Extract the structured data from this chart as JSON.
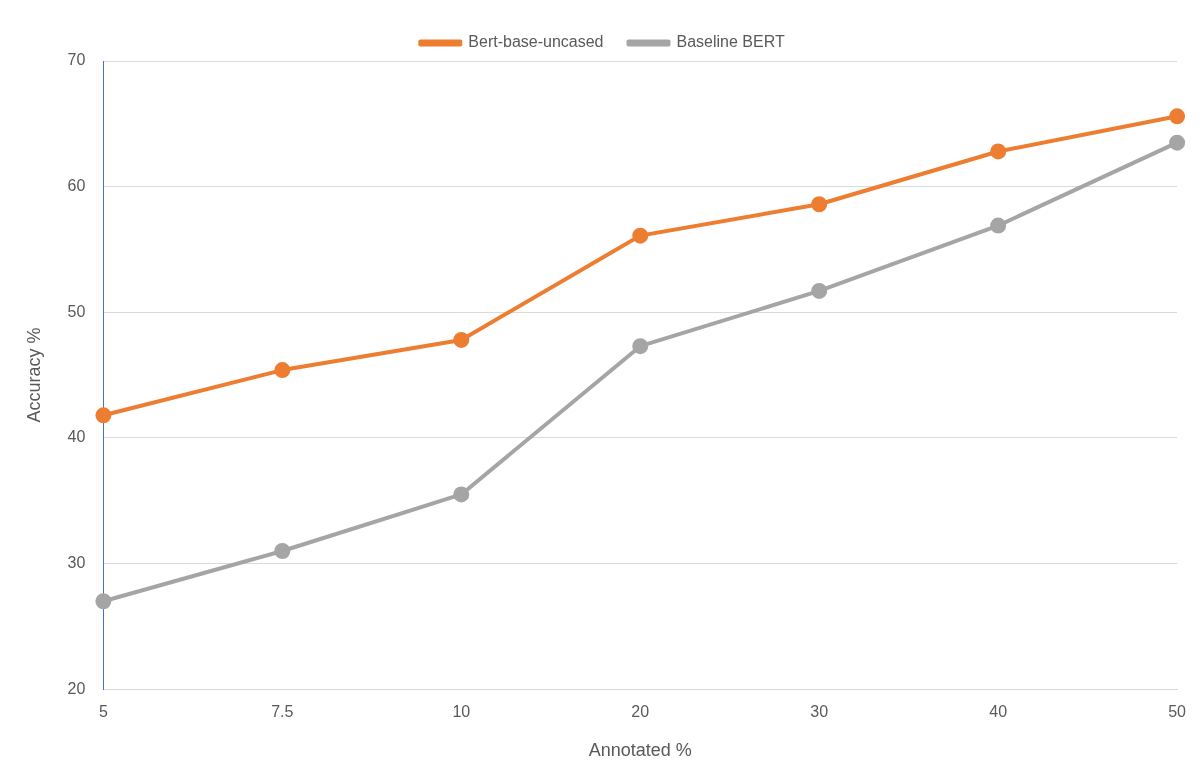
{
  "chart_data": {
    "type": "line",
    "xlabel": "Annotated %",
    "ylabel": "Accuracy %",
    "categories": [
      "5",
      "7.5",
      "10",
      "20",
      "30",
      "40",
      "50"
    ],
    "series": [
      {
        "name": "Bert-base-uncased",
        "color": "#ed7d31",
        "values": [
          41.8,
          45.4,
          47.8,
          56.1,
          58.6,
          62.8,
          65.6
        ]
      },
      {
        "name": "Baseline BERT",
        "color": "#a5a5a5",
        "values": [
          27.0,
          31.0,
          35.5,
          47.3,
          51.7,
          56.9,
          63.5
        ]
      }
    ],
    "ylim": [
      20,
      70
    ],
    "yticks": [
      20,
      30,
      40,
      50,
      60,
      70
    ],
    "grid": "y",
    "legend": "top",
    "marker": "circle",
    "line_style": "solid"
  }
}
